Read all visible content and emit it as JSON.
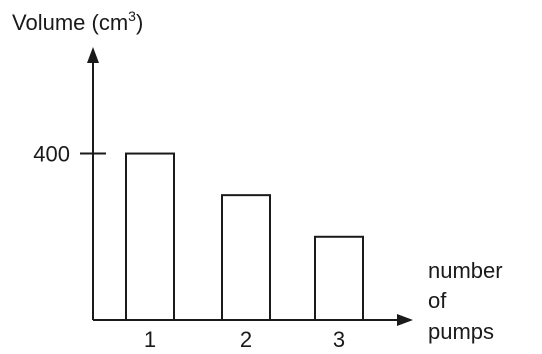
{
  "chart_data": {
    "type": "bar",
    "ylabel": "Volume (cm",
    "ylabel_sup": "3",
    "ylabel_close": ")",
    "xlabel_lines": [
      "number",
      "of",
      "pumps"
    ],
    "categories": [
      "1",
      "2",
      "3"
    ],
    "values": [
      400,
      300,
      200
    ],
    "yticks": [
      400
    ],
    "ylim": [
      0,
      620
    ],
    "grid": false,
    "colors": {
      "ink": "#1a1a1a",
      "bar_fill": "#ffffff"
    }
  }
}
